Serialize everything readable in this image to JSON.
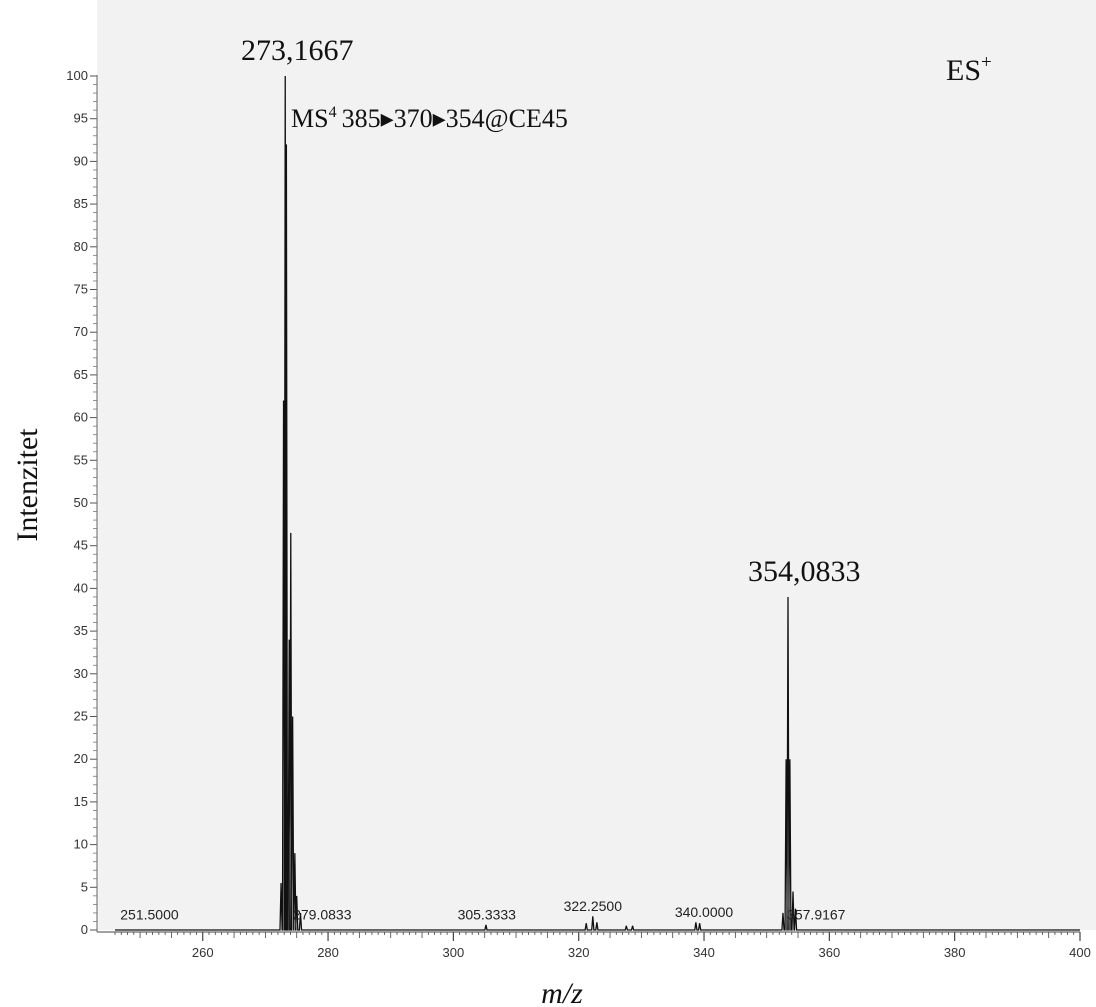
{
  "chart_data": {
    "type": "line",
    "title": "",
    "xlabel": "m/z",
    "ylabel": "Intenzitet",
    "xlim": [
      246,
      400
    ],
    "ylim": [
      0,
      100
    ],
    "x_ticks": [
      260,
      280,
      300,
      320,
      340,
      360,
      380,
      400
    ],
    "y_ticks": [
      0,
      5,
      10,
      15,
      20,
      25,
      30,
      35,
      40,
      45,
      50,
      55,
      60,
      65,
      70,
      75,
      80,
      85,
      90,
      95,
      100
    ],
    "grid": false,
    "annotations": {
      "ionization": {
        "base": "ES",
        "sup": "+"
      },
      "ms_stage": {
        "prefix": "MS",
        "sup": "4",
        "transition": "385▸370▸354@CE45"
      },
      "major_peak_labels": [
        {
          "x": 273.1667,
          "y": 100,
          "text": "273,1667"
        },
        {
          "x": 354.0833,
          "y": 39,
          "text": "354,0833"
        }
      ],
      "minor_peak_labels": [
        {
          "x": 251.5,
          "y": 0.5,
          "text": "251.5000"
        },
        {
          "x": 279.0833,
          "y": 0.5,
          "text": "279.0833"
        },
        {
          "x": 305.3333,
          "y": 0.5,
          "text": "305.3333"
        },
        {
          "x": 322.25,
          "y": 1.5,
          "text": "322.2500"
        },
        {
          "x": 340.0,
          "y": 0.8,
          "text": "340.0000"
        },
        {
          "x": 357.9167,
          "y": 0.5,
          "text": "357.9167"
        }
      ]
    },
    "series": [
      {
        "peaks": [
          {
            "x": 272.5,
            "y": 5.5
          },
          {
            "x": 272.9,
            "y": 62
          },
          {
            "x": 273.1667,
            "y": 100
          },
          {
            "x": 273.35,
            "y": 92
          },
          {
            "x": 273.8,
            "y": 34
          },
          {
            "x": 274.05,
            "y": 46.5
          },
          {
            "x": 274.35,
            "y": 25
          },
          {
            "x": 274.7,
            "y": 9
          },
          {
            "x": 275.0,
            "y": 4
          },
          {
            "x": 275.6,
            "y": 2
          },
          {
            "x": 305.2,
            "y": 0.6
          },
          {
            "x": 321.2,
            "y": 0.8
          },
          {
            "x": 322.25,
            "y": 1.6
          },
          {
            "x": 322.9,
            "y": 0.9
          },
          {
            "x": 327.6,
            "y": 0.5
          },
          {
            "x": 328.6,
            "y": 0.5
          },
          {
            "x": 338.7,
            "y": 0.9
          },
          {
            "x": 339.3,
            "y": 0.8
          },
          {
            "x": 352.6,
            "y": 2
          },
          {
            "x": 353.1,
            "y": 20
          },
          {
            "x": 353.4,
            "y": 39
          },
          {
            "x": 353.7,
            "y": 20
          },
          {
            "x": 354.2,
            "y": 4.5
          },
          {
            "x": 354.6,
            "y": 2.5
          }
        ]
      }
    ]
  }
}
